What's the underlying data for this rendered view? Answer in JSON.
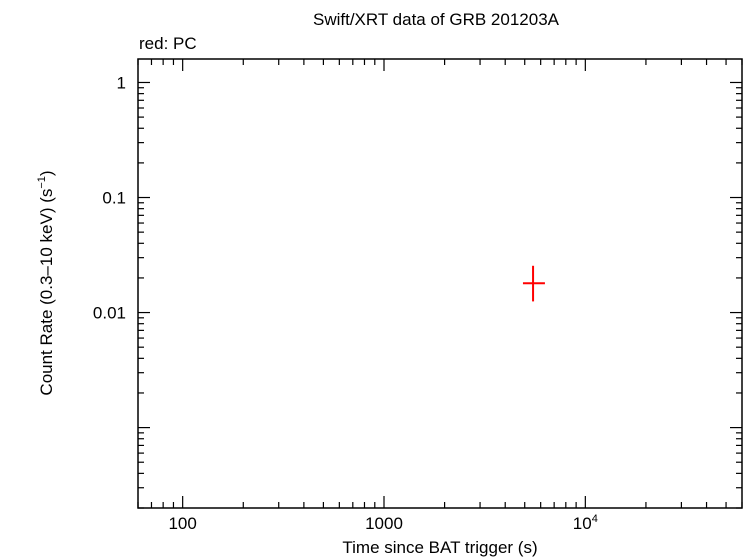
{
  "chart_data": {
    "type": "scatter",
    "title": "Swift/XRT data of GRB 201203A",
    "subtitle": "red: PC",
    "xlabel": "Time since BAT trigger (s)",
    "ylabel_main": "Count Rate (0.3–10 keV) (s",
    "ylabel_sup": "−1",
    "ylabel_close": ")",
    "x_scale": "log",
    "y_scale": "log",
    "xlim": [
      60,
      60000
    ],
    "ylim": [
      0.0002,
      1.6
    ],
    "x_ticks": [
      {
        "value": 100,
        "label": "100"
      },
      {
        "value": 1000,
        "label": "1000"
      },
      {
        "value": 10000,
        "base": "10",
        "exp": "4"
      }
    ],
    "y_ticks": [
      {
        "value": 1,
        "label": "1"
      },
      {
        "value": 0.1,
        "label": "0.1"
      },
      {
        "value": 0.01,
        "label": "0.01"
      }
    ],
    "grid": false,
    "series": [
      {
        "name": "PC",
        "color": "#ff0000",
        "points": [
          {
            "x": 5500,
            "x_lo": 4900,
            "x_hi": 6300,
            "y": 0.018,
            "y_lo": 0.0125,
            "y_hi": 0.0255
          }
        ]
      }
    ]
  }
}
